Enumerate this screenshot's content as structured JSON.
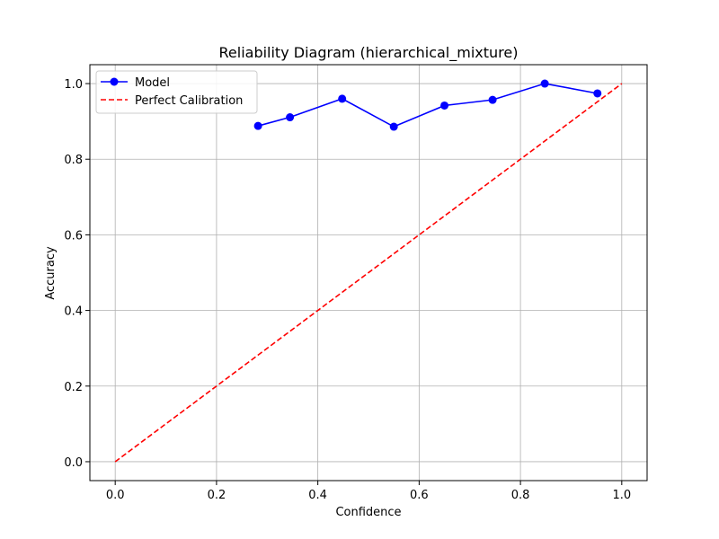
{
  "chart_data": {
    "type": "line",
    "title": "Reliability Diagram (hierarchical_mixture)",
    "xlabel": "Confidence",
    "ylabel": "Accuracy",
    "xlim": [
      -0.05,
      1.05
    ],
    "ylim": [
      -0.05,
      1.05
    ],
    "xticks": [
      0.0,
      0.2,
      0.4,
      0.6,
      0.8,
      1.0
    ],
    "yticks": [
      0.0,
      0.2,
      0.4,
      0.6,
      0.8,
      1.0
    ],
    "xtick_labels": [
      "0.0",
      "0.2",
      "0.4",
      "0.6",
      "0.8",
      "1.0"
    ],
    "ytick_labels": [
      "0.0",
      "0.2",
      "0.4",
      "0.6",
      "0.8",
      "1.0"
    ],
    "grid": true,
    "legend_position": "top-left",
    "series": [
      {
        "name": "Model",
        "color": "#0000ff",
        "style": "solid",
        "marker": "circle",
        "x": [
          0.282,
          0.345,
          0.448,
          0.55,
          0.65,
          0.745,
          0.848,
          0.952
        ],
        "y": [
          0.888,
          0.911,
          0.96,
          0.886,
          0.942,
          0.957,
          1.0,
          0.974
        ]
      },
      {
        "name": "Perfect Calibration",
        "color": "#ff0000",
        "style": "dashed",
        "marker": "none",
        "x": [
          0.0,
          1.0
        ],
        "y": [
          0.0,
          1.0
        ]
      }
    ]
  }
}
